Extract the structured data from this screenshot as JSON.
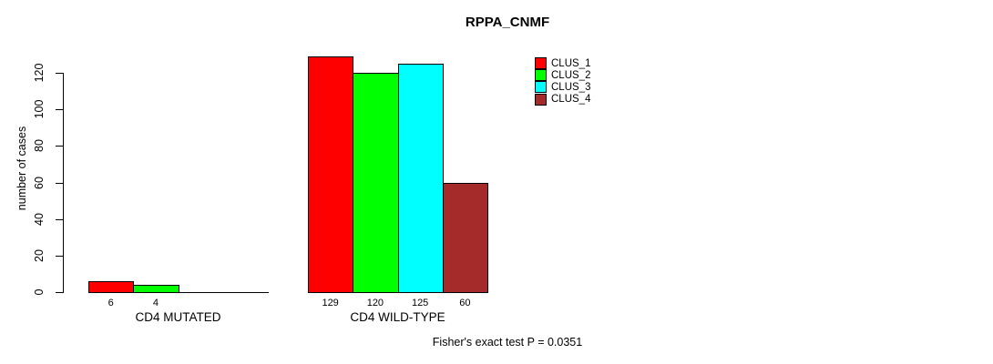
{
  "chart_data": {
    "type": "bar",
    "title": "RPPA_CNMF",
    "ylabel": "number of cases",
    "xlabel": "",
    "ylim": [
      0,
      120
    ],
    "yticks": [
      0,
      20,
      40,
      60,
      80,
      100,
      120
    ],
    "categories": [
      "CD4 MUTATED",
      "CD4 WILD-TYPE"
    ],
    "series": [
      {
        "name": "CLUS_1",
        "color": "#FF0000",
        "values": [
          6,
          129
        ]
      },
      {
        "name": "CLUS_2",
        "color": "#00FF00",
        "values": [
          4,
          120
        ]
      },
      {
        "name": "CLUS_3",
        "color": "#00FFFF",
        "values": [
          0,
          125
        ]
      },
      {
        "name": "CLUS_4",
        "color": "#A52A2A",
        "values": [
          0,
          60
        ]
      }
    ],
    "bar_value_labels": [
      [
        "6",
        "4",
        "",
        ""
      ],
      [
        "129",
        "120",
        "125",
        "60"
      ]
    ],
    "legend_position": "right",
    "grid": false,
    "annotation": "Fisher's exact test P = 0.0351"
  },
  "colors": {
    "axis": "#000000",
    "background": "#FFFFFF",
    "text": "#000000"
  }
}
